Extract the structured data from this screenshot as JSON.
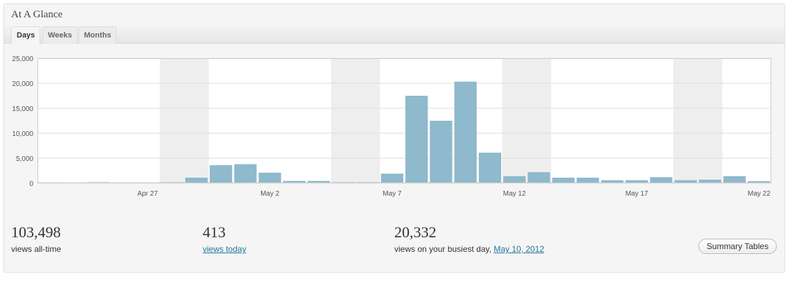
{
  "panel": {
    "title": "At A Glance",
    "tabs": [
      {
        "label": "Days",
        "active": true
      },
      {
        "label": "Weeks",
        "active": false
      },
      {
        "label": "Months",
        "active": false
      }
    ]
  },
  "stats": {
    "all_time": {
      "value": "103,498",
      "label": "views all-time"
    },
    "today": {
      "value": "413",
      "label": "views today"
    },
    "busiest": {
      "value": "20,332",
      "label": "views on your busiest day,",
      "date_link": "May 10, 2012"
    }
  },
  "summary_button": {
    "label": "Summary Tables"
  },
  "colors": {
    "bar": "#8fb9cc",
    "weekend_band": "#eeeeee",
    "grid": "#dddddd",
    "link": "#21759b"
  },
  "chart_data": {
    "type": "bar",
    "categories": [
      "Apr 23",
      "Apr 24",
      "Apr 25",
      "Apr 26",
      "Apr 27",
      "Apr 28",
      "Apr 29",
      "Apr 30",
      "May 1",
      "May 2",
      "May 3",
      "May 4",
      "May 5",
      "May 6",
      "May 7",
      "May 8",
      "May 9",
      "May 10",
      "May 11",
      "May 12",
      "May 13",
      "May 14",
      "May 15",
      "May 16",
      "May 17",
      "May 18",
      "May 19",
      "May 20",
      "May 21",
      "May 22"
    ],
    "x_tick_labels": [
      {
        "category": "Apr 27",
        "label": "Apr 27"
      },
      {
        "category": "May 2",
        "label": "May 2"
      },
      {
        "category": "May 7",
        "label": "May 7"
      },
      {
        "category": "May 12",
        "label": "May 12"
      },
      {
        "category": "May 17",
        "label": "May 17"
      },
      {
        "category": "May 22",
        "label": "May 22"
      }
    ],
    "series": [
      {
        "values": [
          150,
          100,
          200,
          150,
          150,
          200,
          1100,
          3600,
          3800,
          2100,
          450,
          450,
          200,
          200,
          1900,
          17500,
          12500,
          20332,
          6100,
          1400,
          2200,
          1100,
          1100,
          600,
          600,
          1200,
          600,
          700,
          1400,
          400
        ]
      }
    ],
    "weekend_bands": [
      [
        "Apr 28",
        "Apr 29"
      ],
      [
        "May 5",
        "May 6"
      ],
      [
        "May 12",
        "May 13"
      ],
      [
        "May 19",
        "May 20"
      ]
    ],
    "ylim": [
      0,
      25000
    ],
    "y_ticks": [
      "0",
      "5,000",
      "10,000",
      "15,000",
      "20,000",
      "25,000"
    ],
    "y_tick_values": [
      0,
      5000,
      10000,
      15000,
      20000,
      25000
    ],
    "grid": true
  }
}
